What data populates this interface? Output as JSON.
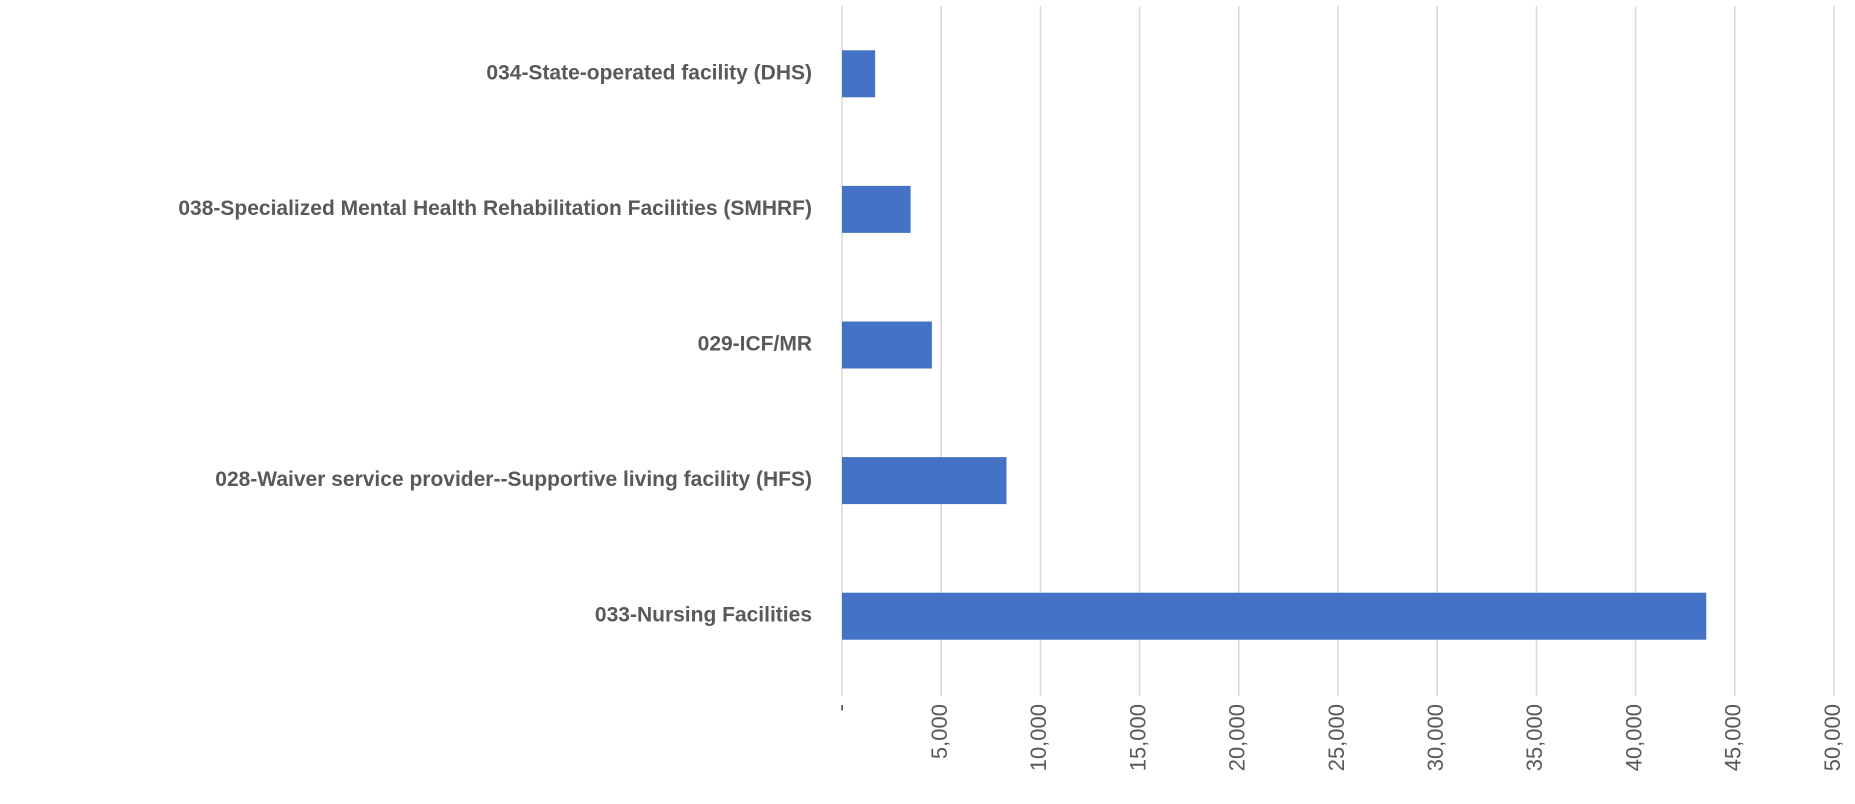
{
  "chart_data": {
    "type": "bar",
    "orientation": "horizontal",
    "categories": [
      "034-State-operated facility (DHS)",
      "038-Specialized Mental Health Rehabilitation Facilities (SMHRF)",
      "029-ICF/MR",
      "028-Waiver service provider--Supportive living facility  (HFS)",
      "033-Nursing Facilities"
    ],
    "values": [
      1670,
      3460,
      4530,
      8290,
      43560
    ],
    "color": "#4472c4",
    "xlim": [
      0,
      50000
    ],
    "xticks": [
      {
        "value": 0,
        "label": "-"
      },
      {
        "value": 5000,
        "label": "5,000"
      },
      {
        "value": 10000,
        "label": "10,000"
      },
      {
        "value": 15000,
        "label": "15,000"
      },
      {
        "value": 20000,
        "label": "20,000"
      },
      {
        "value": 25000,
        "label": "25,000"
      },
      {
        "value": 30000,
        "label": "30,000"
      },
      {
        "value": 35000,
        "label": "35,000"
      },
      {
        "value": 40000,
        "label": "40,000"
      },
      {
        "value": 45000,
        "label": "45,000"
      },
      {
        "value": 50000,
        "label": "50,000"
      }
    ],
    "grid": true
  }
}
